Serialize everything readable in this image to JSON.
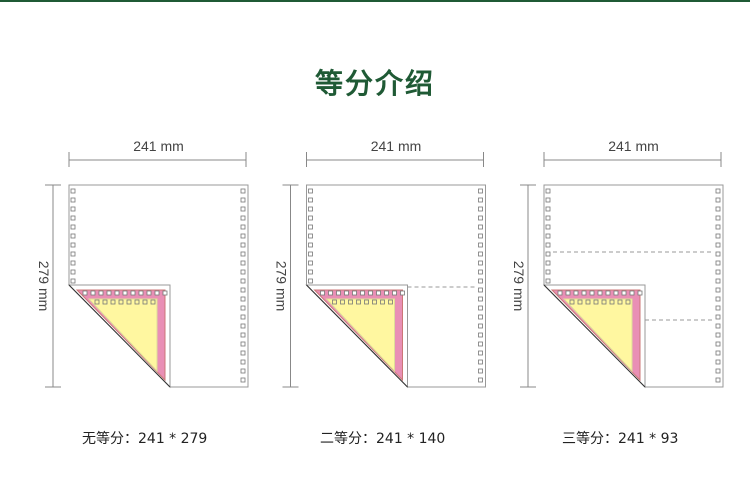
{
  "title": "等分介绍",
  "colors": {
    "brand": "#1f5a35",
    "pink": "#e98fb5",
    "yellow": "#fff7a0",
    "line": "#888888"
  },
  "panels": [
    {
      "width_label": "241 mm",
      "height_label": "279 mm",
      "caption": "无等分：241 * 279",
      "divisions": 1
    },
    {
      "width_label": "241 mm",
      "height_label": "279 mm",
      "caption": "二等分：241 * 140",
      "divisions": 2
    },
    {
      "width_label": "241 mm",
      "height_label": "279 mm",
      "caption": "三等分：241 * 93",
      "divisions": 3
    }
  ]
}
